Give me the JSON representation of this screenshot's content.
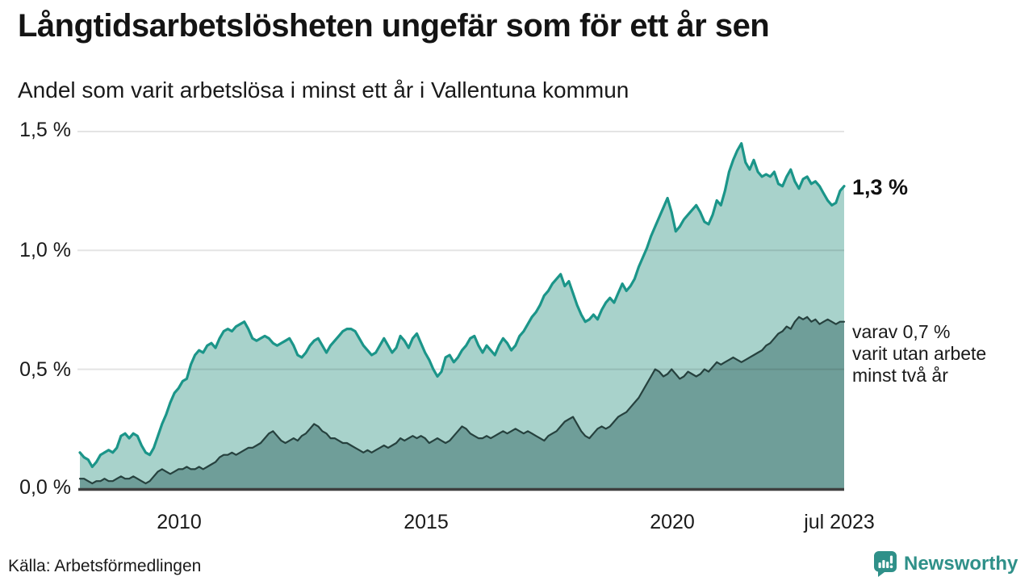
{
  "header": {
    "title": "Långtidsarbetslösheten ungefär som för ett år sen",
    "subtitle": "Andel som varit arbetslösa i minst ett år i Vallentuna kommun"
  },
  "annotations": {
    "latest_total": "1,3 %",
    "two_year_note": "varav 0,7 %\nvarit utan arbete\nminst två år"
  },
  "footer": {
    "source": "Källa: Arbetsförmedlingen",
    "brand": "Newsworthy"
  },
  "colors": {
    "total_line": "#1b9589",
    "total_fill": "#a8d2cb",
    "two_year_line": "#26413e",
    "two_year_fill": "#6f9e99",
    "brand_teal": "#2f9089",
    "grid": "#e0e0e0",
    "axis": "#3f3f3f"
  },
  "chart_data": {
    "type": "area",
    "title": "Långtidsarbetslösheten ungefär som för ett år sen",
    "subtitle": "Andel som varit arbetslösa i minst ett år i Vallentuna kommun",
    "unit": "%",
    "grid": true,
    "legend_position": "direct-labels-right",
    "ylim": [
      0,
      1.5
    ],
    "y_ticks": [
      "1,5 %",
      "1,0 %",
      "0,5 %",
      "0,0 %"
    ],
    "x_ticks": [
      "2010",
      "2015",
      "2020",
      "jul 2023"
    ],
    "x_range": {
      "start_year": 2008,
      "end_label": "jul 2023",
      "points_per_year": 12
    },
    "series": [
      {
        "name": "arbetslösa minst ett år",
        "color": "#1b9589",
        "fill": "#a8d2cb",
        "end_value": 1.3,
        "values": [
          0.15,
          0.13,
          0.12,
          0.09,
          0.11,
          0.14,
          0.15,
          0.16,
          0.15,
          0.17,
          0.22,
          0.23,
          0.21,
          0.23,
          0.22,
          0.18,
          0.15,
          0.14,
          0.17,
          0.22,
          0.27,
          0.31,
          0.36,
          0.4,
          0.42,
          0.45,
          0.46,
          0.52,
          0.56,
          0.58,
          0.57,
          0.6,
          0.61,
          0.59,
          0.63,
          0.66,
          0.67,
          0.66,
          0.68,
          0.69,
          0.7,
          0.67,
          0.63,
          0.62,
          0.63,
          0.64,
          0.63,
          0.61,
          0.6,
          0.61,
          0.62,
          0.63,
          0.6,
          0.56,
          0.55,
          0.57,
          0.6,
          0.62,
          0.63,
          0.6,
          0.57,
          0.6,
          0.62,
          0.64,
          0.66,
          0.67,
          0.67,
          0.66,
          0.63,
          0.6,
          0.58,
          0.56,
          0.57,
          0.6,
          0.63,
          0.6,
          0.57,
          0.59,
          0.64,
          0.62,
          0.59,
          0.63,
          0.65,
          0.61,
          0.57,
          0.54,
          0.5,
          0.47,
          0.49,
          0.55,
          0.56,
          0.53,
          0.55,
          0.58,
          0.6,
          0.63,
          0.64,
          0.6,
          0.57,
          0.6,
          0.58,
          0.56,
          0.6,
          0.63,
          0.61,
          0.58,
          0.6,
          0.64,
          0.66,
          0.69,
          0.72,
          0.74,
          0.77,
          0.81,
          0.83,
          0.86,
          0.88,
          0.9,
          0.85,
          0.87,
          0.82,
          0.77,
          0.73,
          0.7,
          0.71,
          0.73,
          0.71,
          0.75,
          0.78,
          0.8,
          0.78,
          0.82,
          0.86,
          0.83,
          0.85,
          0.88,
          0.93,
          0.97,
          1.01,
          1.06,
          1.1,
          1.14,
          1.18,
          1.22,
          1.16,
          1.08,
          1.1,
          1.13,
          1.15,
          1.17,
          1.19,
          1.16,
          1.12,
          1.11,
          1.15,
          1.21,
          1.19,
          1.25,
          1.33,
          1.38,
          1.42,
          1.45,
          1.37,
          1.34,
          1.38,
          1.33,
          1.31,
          1.32,
          1.31,
          1.33,
          1.28,
          1.27,
          1.31,
          1.34,
          1.29,
          1.26,
          1.3,
          1.31,
          1.28,
          1.29,
          1.27,
          1.24,
          1.21,
          1.19,
          1.2,
          1.25,
          1.27
        ]
      },
      {
        "name": "varav utan arbete minst två år",
        "color": "#26413e",
        "fill": "#6f9e99",
        "end_value": 0.7,
        "values": [
          0.04,
          0.04,
          0.03,
          0.02,
          0.03,
          0.03,
          0.04,
          0.03,
          0.03,
          0.04,
          0.05,
          0.04,
          0.04,
          0.05,
          0.04,
          0.03,
          0.02,
          0.03,
          0.05,
          0.07,
          0.08,
          0.07,
          0.06,
          0.07,
          0.08,
          0.08,
          0.09,
          0.08,
          0.08,
          0.09,
          0.08,
          0.09,
          0.1,
          0.11,
          0.13,
          0.14,
          0.14,
          0.15,
          0.14,
          0.15,
          0.16,
          0.17,
          0.17,
          0.18,
          0.19,
          0.21,
          0.23,
          0.24,
          0.22,
          0.2,
          0.19,
          0.2,
          0.21,
          0.2,
          0.22,
          0.23,
          0.25,
          0.27,
          0.26,
          0.24,
          0.23,
          0.21,
          0.21,
          0.2,
          0.19,
          0.19,
          0.18,
          0.17,
          0.16,
          0.15,
          0.16,
          0.15,
          0.16,
          0.17,
          0.18,
          0.17,
          0.18,
          0.19,
          0.21,
          0.2,
          0.21,
          0.22,
          0.21,
          0.22,
          0.21,
          0.19,
          0.2,
          0.21,
          0.2,
          0.19,
          0.2,
          0.22,
          0.24,
          0.26,
          0.25,
          0.23,
          0.22,
          0.21,
          0.21,
          0.22,
          0.21,
          0.22,
          0.23,
          0.24,
          0.23,
          0.24,
          0.25,
          0.24,
          0.23,
          0.24,
          0.23,
          0.22,
          0.21,
          0.2,
          0.22,
          0.23,
          0.24,
          0.26,
          0.28,
          0.29,
          0.3,
          0.27,
          0.24,
          0.22,
          0.21,
          0.23,
          0.25,
          0.26,
          0.25,
          0.26,
          0.28,
          0.3,
          0.31,
          0.32,
          0.34,
          0.36,
          0.38,
          0.41,
          0.44,
          0.47,
          0.5,
          0.49,
          0.47,
          0.48,
          0.5,
          0.48,
          0.46,
          0.47,
          0.49,
          0.48,
          0.47,
          0.48,
          0.5,
          0.49,
          0.51,
          0.53,
          0.52,
          0.53,
          0.54,
          0.55,
          0.54,
          0.53,
          0.54,
          0.55,
          0.56,
          0.57,
          0.58,
          0.6,
          0.61,
          0.63,
          0.65,
          0.66,
          0.68,
          0.67,
          0.7,
          0.72,
          0.71,
          0.72,
          0.7,
          0.71,
          0.69,
          0.7,
          0.71,
          0.7,
          0.69,
          0.7,
          0.7
        ]
      }
    ]
  }
}
